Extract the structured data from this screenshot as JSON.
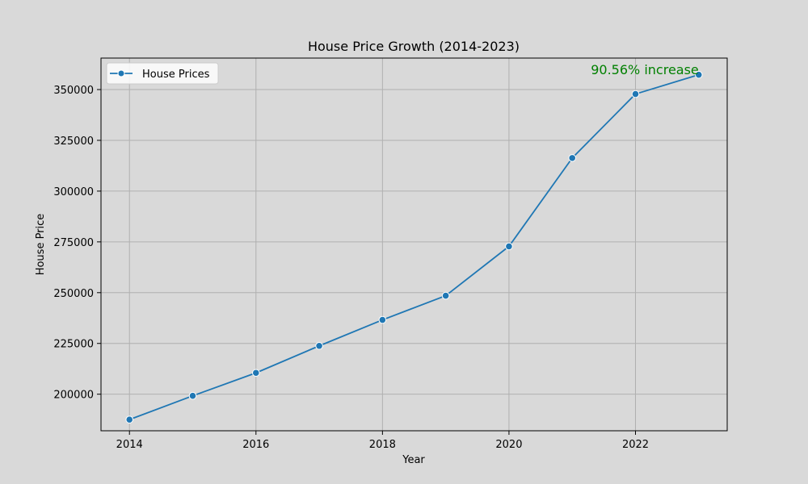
{
  "chart_data": {
    "type": "line",
    "title": "House Price Growth (2014-2023)",
    "xlabel": "Year",
    "ylabel": "House Price",
    "x": [
      2014,
      2015,
      2016,
      2017,
      2018,
      2019,
      2020,
      2021,
      2022,
      2023
    ],
    "series": [
      {
        "name": "House Prices",
        "color": "#1f77b4",
        "values": [
          187500,
          199200,
          210500,
          223800,
          236600,
          248500,
          272800,
          316300,
          347800,
          357300
        ]
      }
    ],
    "xlim": [
      2013.55,
      2023.45
    ],
    "ylim": [
      182000,
      365500
    ],
    "xticks": [
      2014,
      2016,
      2018,
      2020,
      2022
    ],
    "xtick_labels": [
      "2014",
      "2016",
      "2018",
      "2020",
      "2022"
    ],
    "yticks": [
      200000,
      225000,
      250000,
      275000,
      300000,
      325000,
      350000
    ],
    "ytick_labels": [
      "200000",
      "225000",
      "250000",
      "275000",
      "300000",
      "325000",
      "350000"
    ],
    "grid": true,
    "legend_position": "top-left",
    "annotation": {
      "text": "90.56% increase",
      "x": 2023,
      "y": 357300,
      "color": "#008000"
    }
  }
}
